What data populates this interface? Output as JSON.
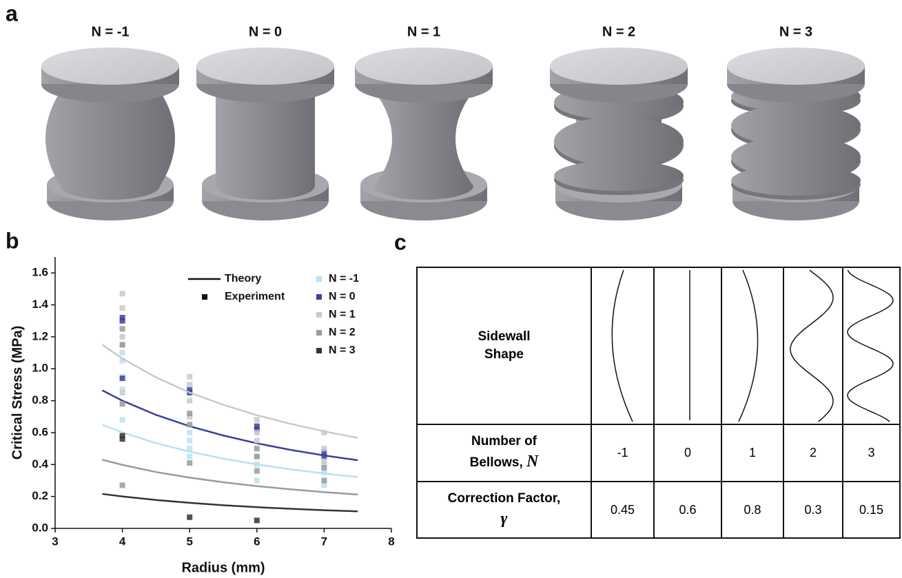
{
  "panel_labels": [
    "a",
    "b",
    "c"
  ],
  "panel_a": {
    "labels": [
      "N = -1",
      "N = 0",
      "N = 1",
      "N = 2",
      "N = 3"
    ]
  },
  "chart_data": {
    "type": "line",
    "xlabel": "Radius (mm)",
    "ylabel": "Critical Stress (MPa)",
    "xlim": [
      3,
      8
    ],
    "ylim": [
      0,
      1.7
    ],
    "xticks": [
      3,
      4,
      5,
      6,
      7,
      8
    ],
    "yticks": [
      {
        "value": 0,
        "label": "0.0"
      },
      0.2,
      0.4,
      0.6,
      0.8,
      {
        "value": 1,
        "label": "1.0"
      },
      1.2,
      1.4,
      1.6
    ],
    "legend_labels": [
      "Theory",
      "Experiment"
    ],
    "theory_x": [
      3.7,
      4,
      4.5,
      5,
      5.5,
      6,
      6.5,
      7,
      7.5
    ],
    "series": [
      {
        "name": "N = -1",
        "color": "#b9e0f5",
        "theory": [
          0.65,
          0.601,
          0.534,
          0.481,
          0.437,
          0.401,
          0.37,
          0.344,
          0.321
        ],
        "exp_x": [
          4,
          4,
          4,
          4,
          4,
          5,
          5,
          5,
          5,
          6,
          6,
          6,
          7,
          7,
          7
        ],
        "exp_values": [
          1.1,
          1.05,
          0.95,
          0.87,
          0.68,
          0.6,
          0.55,
          0.5,
          0.45,
          0.45,
          0.4,
          0.3,
          0.4,
          0.35,
          0.27
        ]
      },
      {
        "name": "N = 0",
        "color": "#3b3f9c",
        "theory": [
          0.865,
          0.8,
          0.711,
          0.64,
          0.582,
          0.533,
          0.492,
          0.457,
          0.427
        ],
        "exp_x": [
          4,
          4,
          4,
          5,
          5,
          6,
          6,
          7,
          7
        ],
        "exp_values": [
          1.32,
          1.3,
          0.94,
          0.87,
          0.85,
          0.64,
          0.62,
          0.48,
          0.45
        ]
      },
      {
        "name": "N = 1",
        "color": "#c9c9c9",
        "theory": [
          1.15,
          1.064,
          0.946,
          0.851,
          0.774,
          0.709,
          0.655,
          0.608,
          0.567
        ],
        "exp_x": [
          4,
          4,
          4,
          4,
          4,
          5,
          5,
          5,
          5,
          6,
          6,
          6,
          7,
          7,
          7
        ],
        "exp_values": [
          1.47,
          1.38,
          1.2,
          1.15,
          0.85,
          0.95,
          0.9,
          0.8,
          0.7,
          0.68,
          0.6,
          0.55,
          0.6,
          0.5,
          0.42
        ]
      },
      {
        "name": "N = 2",
        "color": "#9a9a9a",
        "theory": [
          0.43,
          0.398,
          0.353,
          0.318,
          0.289,
          0.265,
          0.245,
          0.227,
          0.212
        ],
        "exp_x": [
          4,
          4,
          4,
          4,
          5,
          5,
          5,
          6,
          6,
          6,
          7,
          7
        ],
        "exp_values": [
          1.25,
          1.15,
          0.78,
          0.27,
          0.72,
          0.65,
          0.41,
          0.5,
          0.45,
          0.36,
          0.38,
          0.3
        ]
      },
      {
        "name": "N = 3",
        "color": "#333333",
        "theory": [
          0.216,
          0.2,
          0.178,
          0.16,
          0.145,
          0.133,
          0.123,
          0.114,
          0.107
        ],
        "exp_x": [
          4,
          4,
          5,
          6
        ],
        "exp_values": [
          0.58,
          0.56,
          0.07,
          0.05
        ]
      }
    ]
  },
  "panel_c": {
    "rows": [
      {
        "label": "Sidewall Shape"
      },
      {
        "label": "Number of Bellows,",
        "symbol": "N",
        "values": [
          -1,
          0,
          1,
          2,
          3
        ]
      },
      {
        "label": "Correction Factor,",
        "symbol": "γ",
        "values": [
          0.45,
          0.6,
          0.8,
          0.3,
          0.15
        ]
      }
    ]
  }
}
